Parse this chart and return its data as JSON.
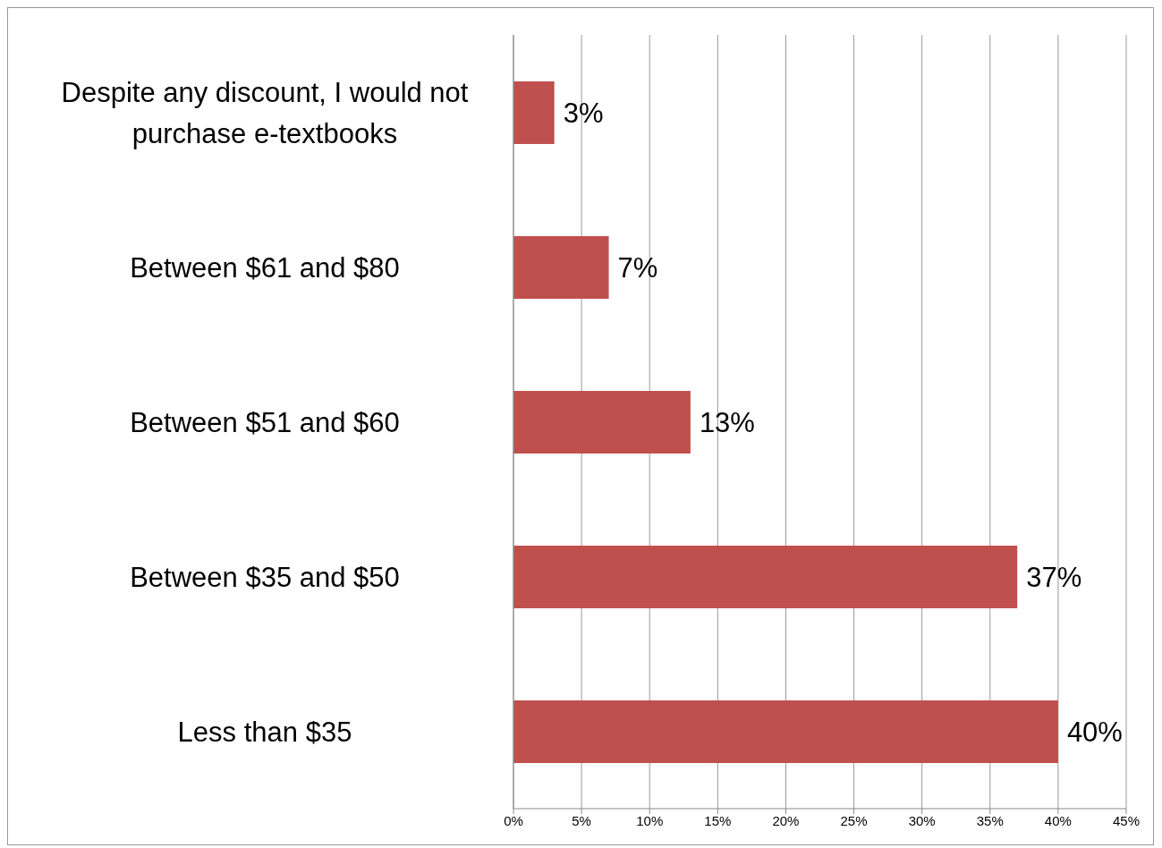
{
  "chart_data": {
    "type": "bar",
    "orientation": "horizontal",
    "categories": [
      "Despite any discount, I would not purchase e-textbooks",
      "Between $61 and $80",
      "Between $51 and $60",
      "Between $35 and $50",
      "Less than $35"
    ],
    "values": [
      3,
      7,
      13,
      37,
      40
    ],
    "value_labels": [
      "3%",
      "7%",
      "13%",
      "37%",
      "40%"
    ],
    "color": "#c0504d",
    "xlim": [
      0,
      45
    ],
    "xticks": [
      {
        "value": 0,
        "label": "0%"
      },
      {
        "value": 5,
        "label": "5%"
      },
      {
        "value": 10,
        "label": "10%"
      },
      {
        "value": 15,
        "label": "15%"
      },
      {
        "value": 20,
        "label": "20%"
      },
      {
        "value": 25,
        "label": "25%"
      },
      {
        "value": 30,
        "label": "30%"
      },
      {
        "value": 35,
        "label": "35%"
      },
      {
        "value": 40,
        "label": "40%"
      },
      {
        "value": 45,
        "label": "45%"
      }
    ],
    "grid": "x",
    "legend": false
  }
}
